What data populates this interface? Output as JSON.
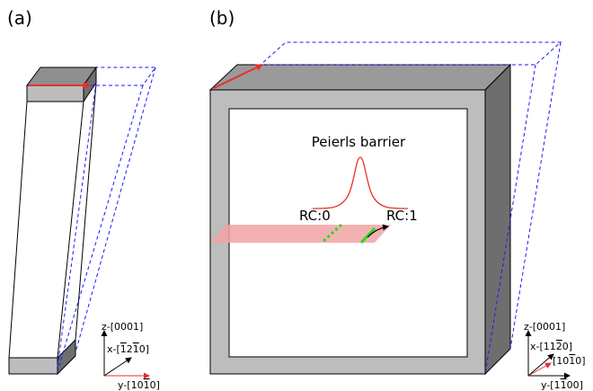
{
  "panel_a": {
    "label": "(a)",
    "axes": {
      "z_label": "z-[0001]",
      "x_label_prefix": "x-[",
      "x_label_bar1": "1",
      "x_label_mid1": "2",
      "x_label_bar2": "1",
      "x_label_suffix": "0]",
      "y_label_prefix": "y-[10",
      "y_label_bar": "1",
      "y_label_suffix": "0]"
    }
  },
  "panel_b": {
    "label": "(b)",
    "barrier_label": "Peierls barrier",
    "rc_start": "RC:0",
    "rc_end": "RC:1",
    "axes": {
      "z_label": "z-[0001]",
      "x_label_prefix": "x-[11",
      "x_label_bar": "2",
      "x_label_suffix": "0]",
      "r_label_prefix": "[10",
      "r_label_bar": "1",
      "r_label_suffix": "0]",
      "y_label_prefix": "y-[1",
      "y_label_bar": "1",
      "y_label_suffix": "00]"
    }
  },
  "colors": {
    "shear_arrow": "#e8302a",
    "sheared_outline": "#1a1aff",
    "dislocation": "#22dd22",
    "barrier_curve": "#e8302a",
    "glide_plane": "#f2a3a3",
    "face_light": "#bdbdbd",
    "face_top": "#9a9a9a",
    "face_side": "#6e6e6e"
  }
}
